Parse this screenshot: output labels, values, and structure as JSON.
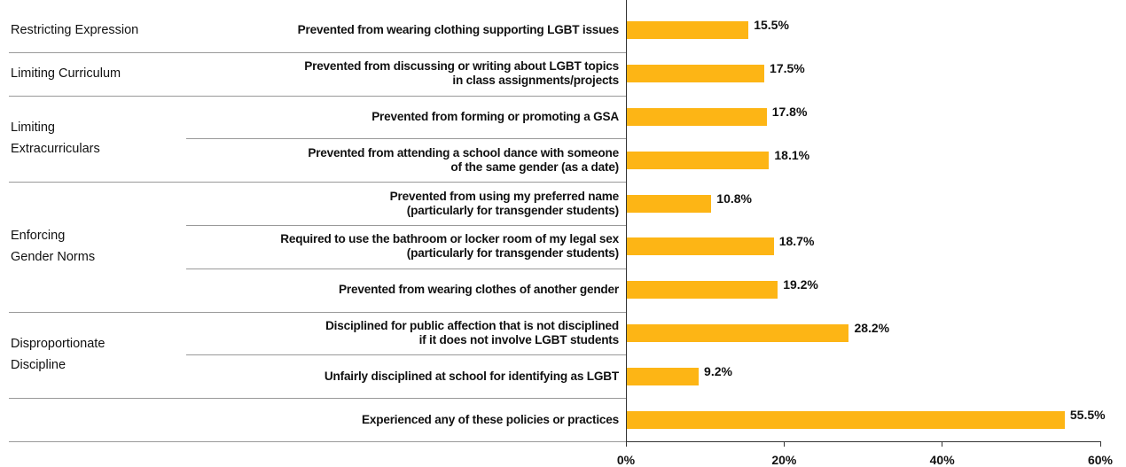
{
  "chart_data": {
    "type": "bar",
    "orientation": "horizontal",
    "color": "#fdb515",
    "groups": [
      {
        "name": "Restricting Expression",
        "categories": [
          "Prevented from wearing clothing supporting LGBT issues"
        ],
        "values": [
          15.5
        ],
        "value_labels": [
          "15.5%"
        ]
      },
      {
        "name": "Limiting Curriculum",
        "categories": [
          "Prevented from discussing or writing about LGBT topics\nin class assignments/projects"
        ],
        "values": [
          17.5
        ],
        "value_labels": [
          "17.5%"
        ]
      },
      {
        "name": "Limiting\nExtracurriculars",
        "categories": [
          "Prevented from forming or promoting a GSA",
          "Prevented from attending a school dance with someone\nof the same gender (as a date)"
        ],
        "values": [
          17.8,
          18.1
        ],
        "value_labels": [
          "17.8%",
          "18.1%"
        ]
      },
      {
        "name": "Enforcing\nGender Norms",
        "categories": [
          "Prevented from using my preferred name\n(particularly for transgender students)",
          "Required to use the bathroom or locker room of my legal sex\n(particularly for transgender students)",
          "Prevented from wearing clothes of another gender"
        ],
        "values": [
          10.8,
          18.7,
          19.2
        ],
        "value_labels": [
          "10.8%",
          "18.7%",
          "19.2%"
        ]
      },
      {
        "name": "Disproportionate\nDiscipline",
        "categories": [
          "Disciplined for public affection that is not disciplined\nif it does not involve LGBT students",
          "Unfairly disciplined at school for identifying as LGBT"
        ],
        "values": [
          28.2,
          9.2
        ],
        "value_labels": [
          "28.2%",
          "9.2%"
        ]
      },
      {
        "categories": [
          "Experienced any of these policies or practices"
        ],
        "values": [
          55.5
        ],
        "value_labels": [
          "55.5%"
        ]
      }
    ],
    "xlim": [
      0,
      60
    ],
    "xticks": [
      {
        "value": 0,
        "label": "0%"
      },
      {
        "value": 20,
        "label": "20%"
      },
      {
        "value": 40,
        "label": "40%"
      },
      {
        "value": 60,
        "label": "60%"
      }
    ]
  }
}
